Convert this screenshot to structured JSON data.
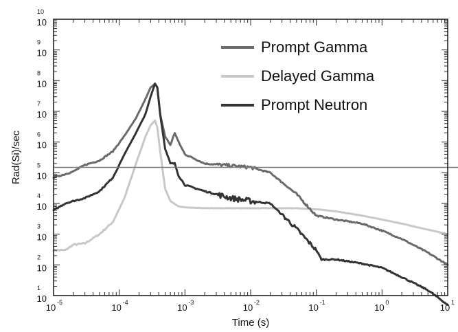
{
  "chart_data": {
    "type": "line",
    "x_scale": "log",
    "y_scale": "log",
    "xlabel": "Time (s)",
    "ylabel": "Rad(Si)/sec",
    "xlim": [
      1e-05,
      10
    ],
    "ylim": [
      10,
      10000000000.0
    ],
    "x_ticks": [
      {
        "base": "10",
        "exp": "-5"
      },
      {
        "base": "10",
        "exp": "-4"
      },
      {
        "base": "10",
        "exp": "-3"
      },
      {
        "base": "10",
        "exp": "-2"
      },
      {
        "base": "10",
        "exp": "-1"
      },
      {
        "base": "10",
        "exp": "0"
      },
      {
        "base": "10",
        "exp": "1"
      }
    ],
    "y_ticks": [
      {
        "base": "10",
        "exp": "1"
      },
      {
        "base": "10",
        "exp": "2"
      },
      {
        "base": "10",
        "exp": "3"
      },
      {
        "base": "10",
        "exp": "4"
      },
      {
        "base": "10",
        "exp": "5"
      },
      {
        "base": "10",
        "exp": "6"
      },
      {
        "base": "10",
        "exp": "7"
      },
      {
        "base": "10",
        "exp": "8"
      },
      {
        "base": "10",
        "exp": "9"
      },
      {
        "base": "10",
        "exp": "10"
      }
    ],
    "reference_line_y": 150000,
    "legend_position": "top-right",
    "series": [
      {
        "name": "Prompt Gamma",
        "color": "#6a6a6a",
        "x": [
          1e-05,
          1.5e-05,
          2e-05,
          3e-05,
          5e-05,
          8e-05,
          0.00012,
          0.00018,
          0.00025,
          0.0003,
          0.00035,
          0.00038,
          0.00042,
          0.0005,
          0.0006,
          0.0007,
          0.0008,
          0.001,
          0.002,
          0.005,
          0.01,
          0.02,
          0.05,
          0.1,
          0.2,
          0.5,
          1,
          2,
          5,
          10
        ],
        "y": [
          70000,
          90000,
          110000,
          180000,
          250000,
          500000,
          1600000,
          6000000,
          25000000,
          60000000,
          80000000,
          60000000,
          8000000,
          1500000,
          800000,
          2000000,
          1000000,
          400000,
          200000,
          170000,
          150000,
          100000,
          20000,
          4000,
          3000,
          2200,
          1300,
          700,
          250,
          100
        ]
      },
      {
        "name": "Delayed Gamma",
        "color": "#c8c8c8",
        "x": [
          1e-05,
          1.5e-05,
          2e-05,
          3e-05,
          5e-05,
          8e-05,
          0.00012,
          0.00018,
          0.00025,
          0.0003,
          0.00035,
          0.00038,
          0.00042,
          0.0005,
          0.0006,
          0.0008,
          0.001,
          0.002,
          0.005,
          0.01,
          0.02,
          0.05,
          0.1,
          0.2,
          0.5,
          1,
          2,
          5,
          10
        ],
        "y": [
          300,
          300,
          450,
          500,
          1000,
          2500,
          15000,
          200000,
          1500000,
          3500000,
          5000000,
          3000000,
          500000,
          30000,
          12000,
          8000,
          7500,
          7000,
          7000,
          7000,
          7000,
          7000,
          6500,
          5500,
          4000,
          3000,
          2200,
          1400,
          1000
        ]
      },
      {
        "name": "Prompt Neutron",
        "color": "#333333",
        "x": [
          1e-05,
          1.5e-05,
          2e-05,
          3e-05,
          5e-05,
          8e-05,
          0.00012,
          0.00018,
          0.00025,
          0.0003,
          0.00035,
          0.00038,
          0.00042,
          0.0005,
          0.0006,
          0.0007,
          0.0008,
          0.001,
          0.002,
          0.005,
          0.01,
          0.02,
          0.05,
          0.1,
          0.12,
          0.2,
          0.5,
          1,
          2,
          5,
          10
        ],
        "y": [
          6000,
          10000,
          12000,
          15000,
          25000,
          70000,
          400000,
          2000000,
          8000000,
          30000000,
          80000000,
          60000000,
          8000000,
          600000,
          200000,
          200000,
          80000,
          40000,
          25000,
          15000,
          12000,
          10000,
          1500,
          300,
          150,
          150,
          110,
          80,
          40,
          15,
          5
        ]
      }
    ]
  }
}
